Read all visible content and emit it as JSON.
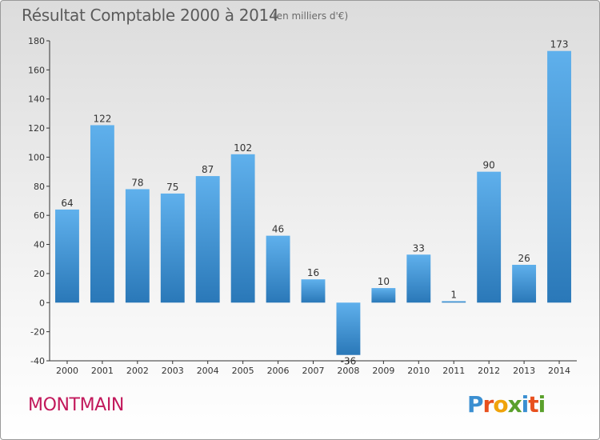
{
  "header": {
    "title": "Résultat Comptable 2000 à 2014",
    "subtitle": "(en milliers d'€)"
  },
  "footer": {
    "commune": "MONTMAIN",
    "logo_text": "Proxiti",
    "logo_colors": [
      "#3b8fd1",
      "#e8501e",
      "#f0a30a",
      "#5aa02c",
      "#3b8fd1",
      "#e8501e",
      "#5aa02c"
    ]
  },
  "colors": {
    "bar_light": "#5fb0ec",
    "bar_dark": "#2a78b8",
    "commune": "#c2185b"
  },
  "chart_data": {
    "type": "bar",
    "title": "Résultat Comptable 2000 à 2014",
    "subtitle": "(en milliers d'€)",
    "categories": [
      "2000",
      "2001",
      "2002",
      "2003",
      "2004",
      "2005",
      "2006",
      "2007",
      "2008",
      "2009",
      "2010",
      "2011",
      "2012",
      "2013",
      "2014"
    ],
    "values": [
      64,
      122,
      78,
      75,
      87,
      102,
      46,
      16,
      -36,
      10,
      33,
      1,
      90,
      26,
      173
    ],
    "ylim": [
      -40,
      180
    ],
    "yticks": [
      -40,
      -20,
      0,
      20,
      40,
      60,
      80,
      100,
      120,
      140,
      160,
      180
    ],
    "grid": false,
    "xlabel": "",
    "ylabel": ""
  }
}
